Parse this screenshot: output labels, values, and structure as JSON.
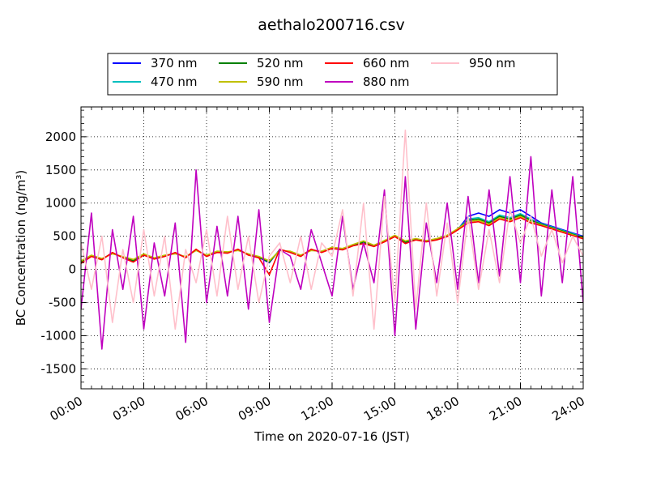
{
  "chart_data": {
    "type": "line",
    "title": "aethalo200716.csv",
    "xlabel": "Time on 2020-07-16 (JST)",
    "ylabel": "BC Concentration (ng/m³)",
    "xlim": [
      "2020-07-16 00:00",
      "2020-07-17 00:00"
    ],
    "ylim": [
      -1800,
      2450
    ],
    "x_ticks": [
      "00:00",
      "03:00",
      "06:00",
      "09:00",
      "12:00",
      "15:00",
      "18:00",
      "21:00",
      "24:00"
    ],
    "y_ticks": [
      -1500,
      -1000,
      -500,
      0,
      500,
      1000,
      1500,
      2000
    ],
    "grid": true,
    "legend_position": "top",
    "x": [
      "00:00",
      "00:30",
      "01:00",
      "01:30",
      "02:00",
      "02:30",
      "03:00",
      "03:30",
      "04:00",
      "04:30",
      "05:00",
      "05:30",
      "06:00",
      "06:30",
      "07:00",
      "07:30",
      "08:00",
      "08:30",
      "09:00",
      "09:30",
      "10:00",
      "10:30",
      "11:00",
      "11:30",
      "12:00",
      "12:30",
      "13:00",
      "13:30",
      "14:00",
      "14:30",
      "15:00",
      "15:30",
      "16:00",
      "16:30",
      "17:00",
      "17:30",
      "18:00",
      "18:30",
      "19:00",
      "19:30",
      "20:00",
      "20:30",
      "21:00",
      "21:30",
      "22:00",
      "22:30",
      "23:00",
      "23:30",
      "24:00"
    ],
    "series": [
      {
        "name": "370 nm",
        "color": "#0000ff",
        "values": [
          100,
          200,
          150,
          250,
          180,
          120,
          220,
          160,
          200,
          250,
          180,
          300,
          200,
          260,
          250,
          300,
          220,
          180,
          100,
          300,
          260,
          200,
          300,
          260,
          320,
          300,
          360,
          400,
          350,
          420,
          500,
          400,
          450,
          420,
          450,
          500,
          600,
          800,
          850,
          800,
          900,
          850,
          900,
          800,
          700,
          650,
          600,
          550,
          500
        ]
      },
      {
        "name": "470 nm",
        "color": "#00bfbf",
        "values": [
          120,
          210,
          160,
          240,
          190,
          140,
          230,
          170,
          210,
          240,
          190,
          290,
          210,
          270,
          260,
          290,
          230,
          190,
          120,
          290,
          270,
          210,
          290,
          270,
          330,
          310,
          370,
          420,
          360,
          430,
          510,
          420,
          460,
          430,
          460,
          510,
          610,
          760,
          780,
          720,
          820,
          780,
          840,
          760,
          690,
          640,
          590,
          540,
          490
        ]
      },
      {
        "name": "520 nm",
        "color": "#008000",
        "values": [
          110,
          205,
          155,
          245,
          185,
          130,
          225,
          165,
          205,
          245,
          185,
          295,
          205,
          265,
          255,
          295,
          225,
          185,
          110,
          295,
          265,
          205,
          295,
          265,
          325,
          305,
          365,
          410,
          355,
          425,
          505,
          410,
          455,
          425,
          455,
          505,
          605,
          740,
          760,
          700,
          800,
          760,
          820,
          740,
          680,
          630,
          580,
          530,
          480
        ]
      },
      {
        "name": "590 nm",
        "color": "#c0c000",
        "values": [
          130,
          215,
          165,
          235,
          195,
          150,
          235,
          175,
          215,
          235,
          195,
          285,
          215,
          275,
          265,
          285,
          235,
          195,
          130,
          285,
          275,
          215,
          285,
          275,
          335,
          315,
          375,
          430,
          365,
          435,
          515,
          430,
          465,
          435,
          465,
          515,
          615,
          720,
          740,
          680,
          780,
          740,
          800,
          720,
          670,
          620,
          570,
          520,
          470
        ]
      },
      {
        "name": "660 nm",
        "color": "#ff0000",
        "values": [
          90,
          195,
          145,
          255,
          175,
          110,
          215,
          155,
          195,
          255,
          175,
          305,
          195,
          255,
          245,
          305,
          215,
          175,
          -80,
          305,
          255,
          195,
          305,
          255,
          315,
          295,
          355,
          390,
          345,
          415,
          495,
          390,
          445,
          415,
          445,
          495,
          595,
          700,
          720,
          660,
          760,
          720,
          780,
          700,
          660,
          610,
          560,
          510,
          460
        ]
      },
      {
        "name": "880 nm",
        "color": "#bf00bf",
        "values": [
          -600,
          850,
          -1200,
          600,
          -300,
          800,
          -900,
          400,
          -400,
          700,
          -1100,
          1500,
          -500,
          650,
          -400,
          800,
          -600,
          900,
          -800,
          300,
          200,
          -300,
          600,
          100,
          -400,
          800,
          -300,
          400,
          -200,
          1200,
          -1000,
          1400,
          -900,
          700,
          -200,
          1000,
          -300,
          1100,
          -200,
          1200,
          -100,
          1400,
          -200,
          1700,
          -400,
          1200,
          -200,
          1400,
          -500
        ]
      },
      {
        "name": "950 nm",
        "color": "#ffc0cb",
        "values": [
          400,
          -300,
          500,
          -800,
          300,
          -500,
          600,
          -400,
          500,
          -900,
          300,
          -200,
          600,
          -400,
          800,
          -300,
          500,
          -500,
          200,
          400,
          -200,
          500,
          -300,
          400,
          200,
          900,
          -400,
          1000,
          -900,
          1100,
          -500,
          2100,
          -600,
          1000,
          -400,
          700,
          -500,
          800,
          -300,
          600,
          -200,
          900,
          400,
          800,
          200,
          600,
          100,
          500,
          200
        ]
      }
    ]
  }
}
